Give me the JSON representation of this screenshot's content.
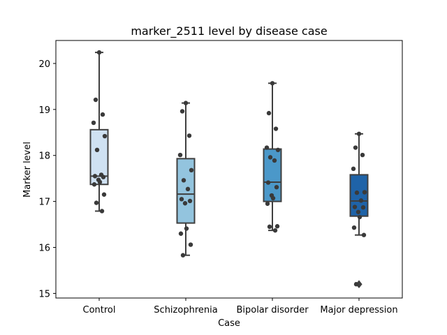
{
  "chart_data": {
    "type": "box",
    "title": "marker_2511 level by disease case",
    "xlabel": "Case",
    "ylabel": "Marker level",
    "ylim": [
      14.9,
      20.5
    ],
    "yticks": [
      15,
      16,
      17,
      18,
      19,
      20
    ],
    "grid": false,
    "categories": [
      "Control",
      "Schizophrenia",
      "Bipolar disorder",
      "Major depression"
    ],
    "box_colors": [
      "#cfe1f2",
      "#93c4de",
      "#4b98c9",
      "#1f63a8"
    ],
    "boxes": [
      {
        "category": "Control",
        "whisker_low": 16.79,
        "q1": 17.37,
        "median": 17.55,
        "q3": 18.56,
        "whisker_high": 20.24,
        "outliers": []
      },
      {
        "category": "Schizophrenia",
        "whisker_low": 15.83,
        "q1": 16.53,
        "median": 17.16,
        "q3": 17.93,
        "whisker_high": 19.14,
        "outliers": []
      },
      {
        "category": "Bipolar disorder",
        "whisker_low": 16.37,
        "q1": 17.0,
        "median": 17.42,
        "q3": 18.14,
        "whisker_high": 19.57,
        "outliers": []
      },
      {
        "category": "Major depression",
        "whisker_low": 16.27,
        "q1": 16.68,
        "median": 17.01,
        "q3": 17.58,
        "whisker_high": 18.47,
        "outliers": [
          15.2
        ]
      }
    ],
    "points": [
      {
        "category": "Control",
        "values": [
          20.24,
          19.21,
          18.89,
          18.71,
          18.42,
          18.12,
          17.58,
          17.55,
          17.53,
          17.47,
          17.42,
          17.37,
          17.15,
          16.97,
          16.79
        ]
      },
      {
        "category": "Schizophrenia",
        "values": [
          19.14,
          18.96,
          18.43,
          18.01,
          17.68,
          17.46,
          17.27,
          17.05,
          17.01,
          16.96,
          16.41,
          16.3,
          16.06,
          15.83
        ]
      },
      {
        "category": "Bipolar disorder",
        "values": [
          19.57,
          18.92,
          18.58,
          18.17,
          18.12,
          17.96,
          17.89,
          17.41,
          17.31,
          17.13,
          17.07,
          16.95,
          16.46,
          16.45,
          16.37
        ]
      },
      {
        "category": "Major depression",
        "values": [
          18.47,
          18.17,
          18.01,
          17.71,
          17.2,
          17.19,
          17.02,
          16.88,
          16.87,
          16.77,
          16.66,
          16.43,
          16.27,
          15.2
        ]
      }
    ]
  }
}
